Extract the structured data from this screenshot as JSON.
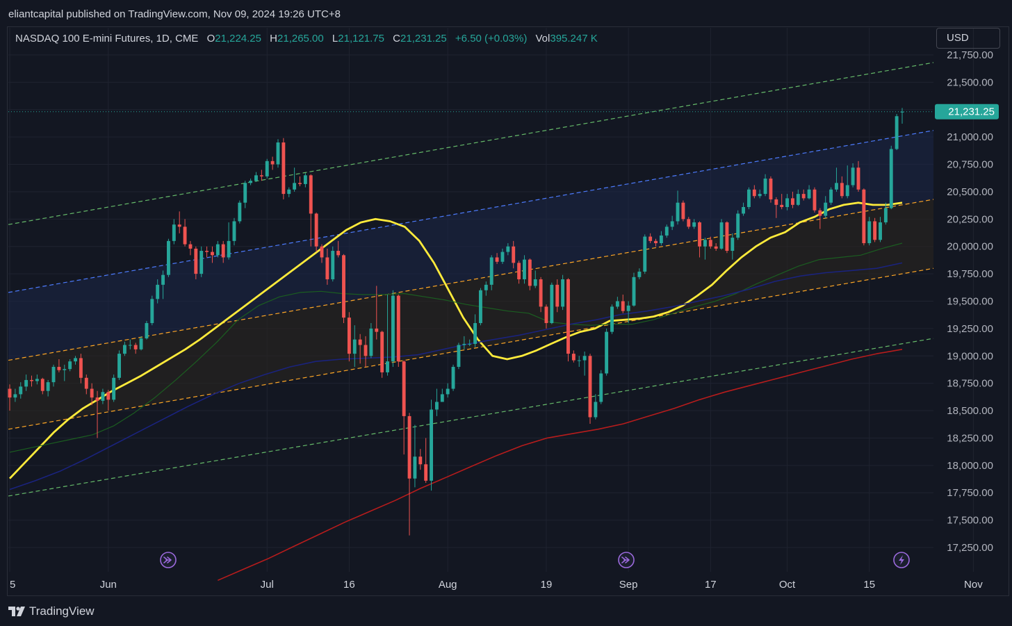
{
  "header": {
    "publisher_line": "eliantcapital published on TradingView.com, Nov 09, 2024 19:26 UTC+8"
  },
  "legend": {
    "symbol": "NASDAQ 100 E-mini Futures, 1D, CME",
    "open_label": "O",
    "open_value": "21,224.25",
    "high_label": "H",
    "high_value": "21,265.00",
    "low_label": "L",
    "low_value": "21,121.75",
    "close_label": "C",
    "close_value": "21,231.25",
    "change_value": "+6.50 (+0.03%)",
    "volume_label": "Vol",
    "volume_value": "395.247 K"
  },
  "currency_button": "USD",
  "footer": {
    "brand": "TradingView"
  },
  "colors": {
    "background": "#131722",
    "grid": "#1f2330",
    "up": "#26a69a",
    "down": "#ef5350",
    "sma_fast": "#ffeb3b",
    "sma_mid": "#1b5e20",
    "sma_slow": "#1a237e",
    "sma_long": "#b71c1c",
    "channel_outer": "#66bb6a",
    "channel_mid": "#4d7cff",
    "channel_inner": "#ffa726",
    "price_label": "#26a69a",
    "event_icon": "#9c6ade"
  },
  "chart_data": {
    "type": "candlestick",
    "title": "NASDAQ 100 E-mini Futures, 1D, CME",
    "y_axis": {
      "ticks": [
        17250,
        17500,
        17750,
        18000,
        18250,
        18500,
        18750,
        19000,
        19250,
        19500,
        19750,
        20000,
        20250,
        20500,
        20750,
        21000,
        21250,
        21500,
        21750
      ],
      "tick_labels": [
        "17,250.00",
        "17,500.00",
        "17,750.00",
        "18,000.00",
        "18,250.00",
        "18,500.00",
        "18,750.00",
        "19,000.00",
        "19,250.00",
        "19,500.00",
        "19,750.00",
        "20,000.00",
        "20,250.00",
        "20,500.00",
        "20,750.00",
        "21,000.00",
        "21,250.00",
        "21,500.00",
        "21,750.00"
      ],
      "ylim": [
        17000,
        21860
      ]
    },
    "x_axis": {
      "tick_labels": [
        "5",
        "Jun",
        "Jul",
        "16",
        "Aug",
        "19",
        "Sep",
        "17",
        "Oct",
        "15",
        "Nov"
      ],
      "tick_bar_index": [
        0,
        18,
        47,
        62,
        80,
        98,
        113,
        128,
        142,
        157,
        176
      ]
    },
    "last_price": 21231.25,
    "last_price_label": "21,231.25",
    "candles": [
      [
        18700,
        18620,
        18740,
        18500
      ],
      [
        18620,
        18650,
        18700,
        18580
      ],
      [
        18650,
        18720,
        18760,
        18610
      ],
      [
        18720,
        18780,
        18830,
        18680
      ],
      [
        18780,
        18770,
        18820,
        18720
      ],
      [
        18770,
        18790,
        18830,
        18740
      ],
      [
        18790,
        18680,
        18800,
        18650
      ],
      [
        18680,
        18760,
        18780,
        18630
      ],
      [
        18760,
        18900,
        18920,
        18720
      ],
      [
        18900,
        18870,
        18970,
        18850
      ],
      [
        18870,
        18880,
        18920,
        18770
      ],
      [
        18880,
        18950,
        18970,
        18860
      ],
      [
        18950,
        18980,
        19000,
        18920
      ],
      [
        18980,
        18800,
        19020,
        18750
      ],
      [
        18800,
        18700,
        18830,
        18650
      ],
      [
        18700,
        18620,
        18750,
        18550
      ],
      [
        18620,
        18590,
        18680,
        18250
      ],
      [
        18590,
        18670,
        18700,
        18560
      ],
      [
        18670,
        18600,
        18690,
        18500
      ],
      [
        18600,
        18800,
        18830,
        18580
      ],
      [
        18800,
        19020,
        19050,
        18780
      ],
      [
        19020,
        19100,
        19130,
        19000
      ],
      [
        19100,
        19100,
        19150,
        19060
      ],
      [
        19100,
        19060,
        19120,
        19020
      ],
      [
        19060,
        19160,
        19180,
        19050
      ],
      [
        19160,
        19300,
        19320,
        19150
      ],
      [
        19300,
        19520,
        19550,
        19280
      ],
      [
        19520,
        19650,
        19700,
        19480
      ],
      [
        19650,
        19740,
        19780,
        19520
      ],
      [
        19740,
        20050,
        20070,
        19720
      ],
      [
        20050,
        20200,
        20250,
        20020
      ],
      [
        20200,
        20180,
        20320,
        20120
      ],
      [
        20180,
        20020,
        20250,
        20000
      ],
      [
        20020,
        19980,
        20050,
        19920
      ],
      [
        19980,
        19750,
        20000,
        19700
      ],
      [
        19750,
        19960,
        20000,
        19720
      ],
      [
        19960,
        19950,
        20000,
        19900
      ],
      [
        19950,
        19920,
        20000,
        19850
      ],
      [
        19920,
        20020,
        20050,
        19900
      ],
      [
        20020,
        19900,
        20050,
        19850
      ],
      [
        19900,
        20050,
        20220,
        19880
      ],
      [
        20050,
        20230,
        20260,
        20010
      ],
      [
        20230,
        20400,
        20420,
        20210
      ],
      [
        20400,
        20580,
        20600,
        20350
      ],
      [
        20580,
        20600,
        20620,
        20560
      ],
      [
        20600,
        20650,
        20680,
        20590
      ],
      [
        20650,
        20640,
        20700,
        20600
      ],
      [
        20640,
        20780,
        20800,
        20620
      ],
      [
        20780,
        20750,
        20820,
        20700
      ],
      [
        20750,
        20950,
        20980,
        20720
      ],
      [
        20950,
        20480,
        20990,
        20430
      ],
      [
        20480,
        20520,
        20540,
        20450
      ],
      [
        20520,
        20580,
        20720,
        20500
      ],
      [
        20580,
        20570,
        20640,
        20550
      ],
      [
        20570,
        20650,
        20670,
        20540
      ],
      [
        20650,
        20300,
        20660,
        20000
      ],
      [
        20300,
        20000,
        20310,
        19950
      ],
      [
        20000,
        19900,
        20020,
        19850
      ],
      [
        19900,
        19700,
        19980,
        19650
      ],
      [
        19700,
        19960,
        20000,
        19680
      ],
      [
        19960,
        19920,
        20050,
        19900
      ],
      [
        19920,
        19350,
        19930,
        19300
      ],
      [
        19350,
        19020,
        19400,
        18950
      ],
      [
        19020,
        19150,
        19280,
        18900
      ],
      [
        19150,
        19100,
        19200,
        18930
      ],
      [
        19100,
        19000,
        19180,
        18900
      ],
      [
        19000,
        19250,
        19300,
        18980
      ],
      [
        19250,
        19220,
        19640,
        19150
      ],
      [
        19220,
        18850,
        19230,
        18800
      ],
      [
        18850,
        18950,
        19560,
        18820
      ],
      [
        18950,
        19550,
        19600,
        18900
      ],
      [
        19550,
        18950,
        19560,
        18900
      ],
      [
        18950,
        18450,
        18960,
        18100
      ],
      [
        18450,
        17880,
        18480,
        17360
      ],
      [
        17880,
        18080,
        18370,
        17800
      ],
      [
        18080,
        18010,
        18150,
        17960
      ],
      [
        18010,
        17860,
        18250,
        17840
      ],
      [
        17860,
        18510,
        18600,
        17770
      ],
      [
        18510,
        18580,
        18700,
        18450
      ],
      [
        18580,
        18650,
        18700,
        18600
      ],
      [
        18650,
        18700,
        18750,
        18620
      ],
      [
        18700,
        18900,
        18920,
        18680
      ],
      [
        18900,
        19100,
        19120,
        18880
      ],
      [
        19100,
        19110,
        19180,
        19060
      ],
      [
        19110,
        19110,
        19150,
        19090
      ],
      [
        19110,
        19300,
        19380,
        19080
      ],
      [
        19300,
        19600,
        19620,
        19280
      ],
      [
        19600,
        19650,
        19680,
        19550
      ],
      [
        19650,
        19900,
        19920,
        19600
      ],
      [
        19900,
        19860,
        19940,
        19840
      ],
      [
        19860,
        19950,
        19980,
        19840
      ],
      [
        19950,
        20000,
        20030,
        19920
      ],
      [
        20000,
        19850,
        20050,
        19800
      ],
      [
        19850,
        19700,
        19870,
        19660
      ],
      [
        19700,
        19880,
        19920,
        19660
      ],
      [
        19880,
        19640,
        19890,
        19600
      ],
      [
        19640,
        19700,
        19780,
        19620
      ],
      [
        19700,
        19450,
        19720,
        19400
      ],
      [
        19450,
        19300,
        19470,
        19250
      ],
      [
        19300,
        19650,
        19670,
        19290
      ],
      [
        19650,
        19450,
        19700,
        19400
      ],
      [
        19450,
        19700,
        19740,
        19420
      ],
      [
        19700,
        19020,
        19710,
        18950
      ],
      [
        19020,
        18960,
        19050,
        18940
      ],
      [
        18960,
        18960,
        19000,
        18900
      ],
      [
        18960,
        19000,
        19040,
        18820
      ],
      [
        19000,
        18440,
        19020,
        18380
      ],
      [
        18440,
        18580,
        18650,
        18420
      ],
      [
        18580,
        18840,
        18870,
        18560
      ],
      [
        18840,
        19220,
        19250,
        18820
      ],
      [
        19220,
        19450,
        19470,
        19200
      ],
      [
        19450,
        19500,
        19540,
        19430
      ],
      [
        19500,
        19410,
        19560,
        19390
      ],
      [
        19410,
        19460,
        19500,
        19300
      ],
      [
        19460,
        19720,
        19760,
        19450
      ],
      [
        19720,
        19770,
        19800,
        19700
      ],
      [
        19770,
        20090,
        20110,
        19750
      ],
      [
        20090,
        20050,
        20120,
        20030
      ],
      [
        20050,
        20030,
        20070,
        20000
      ],
      [
        20030,
        20100,
        20140,
        20010
      ],
      [
        20100,
        20180,
        20200,
        20080
      ],
      [
        20180,
        20230,
        20280,
        20150
      ],
      [
        20230,
        20400,
        20510,
        20200
      ],
      [
        20400,
        20250,
        20420,
        20230
      ],
      [
        20250,
        20180,
        20270,
        20160
      ],
      [
        20180,
        20220,
        20250,
        20160
      ],
      [
        20220,
        20000,
        20230,
        19900
      ],
      [
        20000,
        20060,
        20080,
        19880
      ],
      [
        20060,
        20000,
        20090,
        19980
      ],
      [
        20000,
        19980,
        20030,
        19960
      ],
      [
        19980,
        20220,
        20250,
        19970
      ],
      [
        20220,
        19960,
        20230,
        19940
      ],
      [
        19960,
        20080,
        20120,
        19880
      ],
      [
        20080,
        20300,
        20330,
        20060
      ],
      [
        20300,
        20360,
        20400,
        20280
      ],
      [
        20360,
        20520,
        20540,
        20340
      ],
      [
        20520,
        20460,
        20560,
        20440
      ],
      [
        20460,
        20480,
        20520,
        20440
      ],
      [
        20480,
        20620,
        20660,
        20460
      ],
      [
        20620,
        20430,
        20640,
        20400
      ],
      [
        20430,
        20380,
        20450,
        20260
      ],
      [
        20380,
        20360,
        20480,
        20340
      ],
      [
        20360,
        20440,
        20480,
        20330
      ],
      [
        20440,
        20380,
        20500,
        20350
      ],
      [
        20380,
        20480,
        20520,
        20370
      ],
      [
        20480,
        20440,
        20520,
        20420
      ],
      [
        20440,
        20520,
        20560,
        20430
      ],
      [
        20520,
        20330,
        20540,
        20310
      ],
      [
        20330,
        20280,
        20350,
        20160
      ],
      [
        20280,
        20400,
        20460,
        20260
      ],
      [
        20400,
        20520,
        20540,
        20380
      ],
      [
        20520,
        20580,
        20720,
        20500
      ],
      [
        20580,
        20460,
        20640,
        20440
      ],
      [
        20460,
        20560,
        20740,
        20440
      ],
      [
        20560,
        20720,
        20760,
        20540
      ],
      [
        20720,
        20520,
        20780,
        20500
      ],
      [
        20520,
        20030,
        20530,
        20010
      ],
      [
        20030,
        20230,
        20270,
        20010
      ],
      [
        20230,
        20060,
        20260,
        20040
      ],
      [
        20060,
        20220,
        20270,
        20040
      ],
      [
        20220,
        20350,
        20400,
        20200
      ],
      [
        20350,
        20890,
        20920,
        20340
      ],
      [
        20890,
        21190,
        21210,
        20880
      ],
      [
        21224.25,
        21231.25,
        21265,
        21121.75
      ]
    ],
    "series": [
      {
        "name": "SMA fast",
        "values": [
          17880,
          18020,
          18160,
          18300,
          18420,
          18520,
          18600,
          18680,
          18750,
          18820,
          18900,
          18980,
          19060,
          19150,
          19250,
          19350,
          19450,
          19550,
          19650,
          19750,
          19850,
          19950,
          20050,
          20150,
          20220,
          20250,
          20230,
          20180,
          20050,
          19850,
          19600,
          19350,
          19150,
          19000,
          18970,
          19000,
          19050,
          19110,
          19170,
          19220,
          19250,
          19320,
          19330,
          19340,
          19360,
          19400,
          19460,
          19550,
          19650,
          19780,
          19900,
          20000,
          20080,
          20130,
          20220,
          20270,
          20340,
          20380,
          20400,
          20380,
          20380,
          20400
        ]
      },
      {
        "name": "SMA mid",
        "values": [
          18120,
          18160,
          18200,
          18240,
          18280,
          18360,
          18480,
          18620,
          18780,
          18950,
          19130,
          19330,
          19460,
          19540,
          19580,
          19590,
          19570,
          19560,
          19560,
          19570,
          19540,
          19510,
          19470,
          19440,
          19410,
          19390,
          19310,
          19290,
          19280,
          19290,
          19290,
          19330,
          19390,
          19450,
          19500,
          19570,
          19660,
          19740,
          19820,
          19880,
          19900,
          19920,
          19980,
          20030
        ]
      },
      {
        "name": "SMA slow",
        "values": [
          17780,
          17860,
          17950,
          18060,
          18180,
          18300,
          18420,
          18540,
          18650,
          18750,
          18830,
          18900,
          18950,
          18970,
          18980,
          18990,
          19010,
          19060,
          19110,
          19150,
          19190,
          19240,
          19290,
          19330,
          19380,
          19410,
          19450,
          19500,
          19550,
          19610,
          19680,
          19730,
          19760,
          19780,
          19800,
          19850
        ]
      },
      {
        "name": "SMA long",
        "values": [
          16950,
          17050,
          17150,
          17260,
          17370,
          17480,
          17580,
          17680,
          17790,
          17890,
          17990,
          18090,
          18180,
          18250,
          18290,
          18330,
          18380,
          18450,
          18520,
          18600,
          18670,
          18730,
          18790,
          18850,
          18910,
          18970,
          19020,
          19060
        ]
      }
    ]
  }
}
